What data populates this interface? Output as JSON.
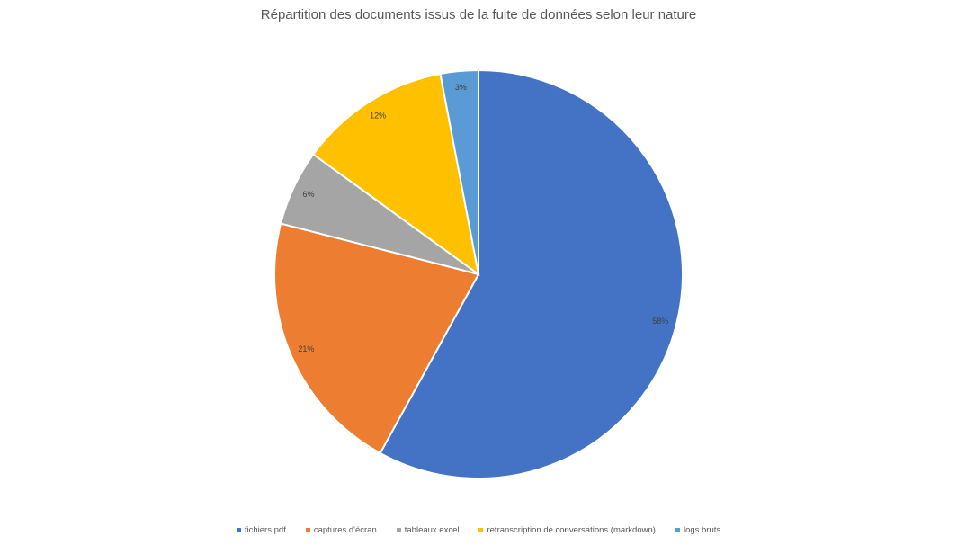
{
  "chart_data": {
    "type": "pie",
    "title": "Répartition des documents issus de la fuite de données selon leur nature",
    "categories": [
      "fichiers pdf",
      "captures d'écran",
      "tableaux excel",
      "retranscription de conversations (markdown)",
      "logs bruts"
    ],
    "values": [
      58,
      21,
      6,
      12,
      3
    ],
    "data_labels": [
      "58%",
      "21%",
      "6%",
      "12%",
      "3%"
    ],
    "colors": [
      "#4472C4",
      "#ED7D31",
      "#A5A5A5",
      "#FFC000",
      "#5B9BD5"
    ],
    "legend_position": "bottom"
  }
}
